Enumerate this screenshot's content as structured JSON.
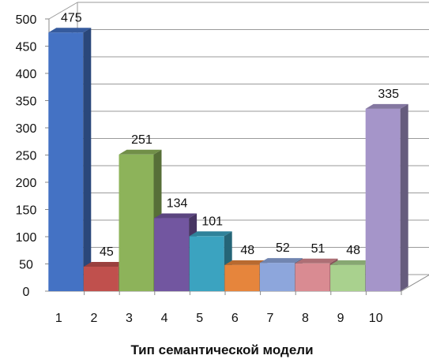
{
  "chart_data": {
    "type": "bar",
    "style": "3d-column",
    "title": "",
    "xlabel": "Тип семантической модели",
    "ylabel": "",
    "categories": [
      "1",
      "2",
      "3",
      "4",
      "5",
      "6",
      "7",
      "8",
      "9",
      "10"
    ],
    "values": [
      475,
      45,
      251,
      134,
      101,
      48,
      52,
      51,
      48,
      335
    ],
    "data_labels": [
      "475",
      "45",
      "251",
      "134",
      "101",
      "48",
      "52",
      "51",
      "48",
      "335"
    ],
    "ylim": [
      0,
      500
    ],
    "yticks": [
      0,
      50,
      100,
      150,
      200,
      250,
      300,
      350,
      400,
      450,
      500
    ],
    "ytick_labels": [
      "0",
      "50",
      "100",
      "150",
      "200",
      "250",
      "300",
      "350",
      "400",
      "450",
      "500"
    ],
    "grid": true,
    "legend": "none",
    "bar_colors": [
      "#4472C4",
      "#C0504D",
      "#8DB35A",
      "#7256A0",
      "#3BA3C0",
      "#E6853C",
      "#8DA6DC",
      "#D98B92",
      "#A9D18E",
      "#A595C9"
    ],
    "grid_color": "#9a9a9a",
    "axis_color": "#8a8a8a"
  }
}
